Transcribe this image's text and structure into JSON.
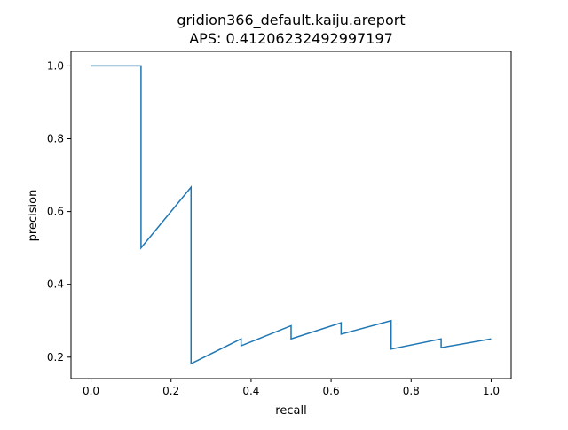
{
  "chart_data": {
    "type": "line",
    "title_line1": "gridion366_default.kaiju.areport",
    "title_line2": "APS: 0.41206232492997197",
    "xlabel": "recall",
    "ylabel": "precision",
    "xlim": [
      -0.05,
      1.05
    ],
    "ylim": [
      0.141,
      1.04
    ],
    "xticks": [
      0.0,
      0.2,
      0.4,
      0.6,
      0.8,
      1.0
    ],
    "xtick_labels": [
      "0.0",
      "0.2",
      "0.4",
      "0.6",
      "0.8",
      "1.0"
    ],
    "yticks": [
      0.2,
      0.4,
      0.6,
      0.8,
      1.0
    ],
    "ytick_labels": [
      "0.2",
      "0.4",
      "0.6",
      "0.8",
      "1.0"
    ],
    "grid": false,
    "legend": "none",
    "line_color": "#1f77b4",
    "series": [
      {
        "x": [
          0.0,
          0.125,
          0.125,
          0.25,
          0.25,
          0.375,
          0.375,
          0.5,
          0.5,
          0.625,
          0.625,
          0.75,
          0.75,
          0.875,
          0.875,
          1.0
        ],
        "y": [
          1.0,
          1.0,
          0.5,
          0.667,
          0.182,
          0.25,
          0.231,
          0.286,
          0.25,
          0.294,
          0.263,
          0.3,
          0.222,
          0.25,
          0.226,
          0.25
        ]
      }
    ]
  }
}
